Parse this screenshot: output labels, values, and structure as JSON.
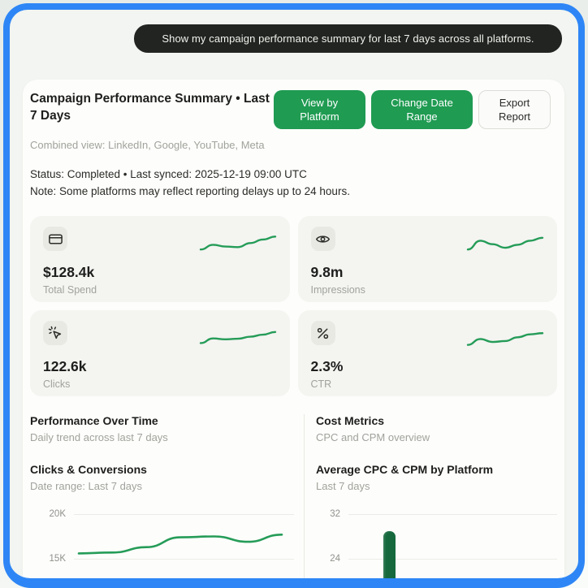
{
  "chat": {
    "message": "Show my campaign performance summary for last 7 days across all platforms."
  },
  "header": {
    "title": "Campaign Performance Summary • Last 7 Days",
    "subtitle": "Combined view: LinkedIn, Google, YouTube, Meta",
    "buttons": [
      {
        "label": "View by Platform",
        "style": "primary"
      },
      {
        "label": "Change Date Range",
        "style": "primary"
      },
      {
        "label": "Export Report",
        "style": "secondary"
      }
    ]
  },
  "status": {
    "line1": "Status: Completed • Last synced: 2025-12-19 09:00 UTC",
    "line2": "Note: Some platforms may reflect reporting delays up to 24 hours."
  },
  "kpis": [
    {
      "icon": "credit-card",
      "value": "$128.4k",
      "label": "Total Spend",
      "trend": [
        3.0,
        4.6,
        4.0,
        3.8,
        5.2,
        6.4,
        7.4
      ]
    },
    {
      "icon": "eye",
      "value": "9.8m",
      "label": "Impressions",
      "trend": [
        3.0,
        6.0,
        4.8,
        3.6,
        4.6,
        6.0,
        7.0
      ]
    },
    {
      "icon": "cursor-click",
      "value": "122.6k",
      "label": "Clicks",
      "trend": [
        3.2,
        4.8,
        4.5,
        4.7,
        5.4,
        6.1,
        7.0
      ]
    },
    {
      "icon": "percent",
      "value": "2.3%",
      "label": "CTR",
      "trend": [
        2.6,
        4.6,
        3.6,
        3.9,
        5.2,
        6.2,
        6.6
      ]
    }
  ],
  "sections": {
    "left": {
      "title": "Performance Over Time",
      "subtitle": "Daily trend across last 7 days",
      "chart_title": "Clicks & Conversions",
      "chart_subtitle": "Date range: Last 7 days"
    },
    "right": {
      "title": "Cost Metrics",
      "subtitle": "CPC and CPM overview",
      "chart_title": "Average CPC & CPM by Platform",
      "chart_subtitle": "Last 7 days"
    }
  },
  "chart_data": [
    {
      "id": "clicks-line",
      "type": "line",
      "title": "Clicks & Conversions",
      "values": [
        15600,
        15700,
        16300,
        17400,
        17500,
        16900,
        17700
      ],
      "y_ticks_visible": [
        "20K",
        "15K"
      ],
      "ylim_visible": [
        15000,
        20000
      ],
      "series_color": "#259c58",
      "note": "chart partially cut off at bottom edge of screenshot"
    },
    {
      "id": "cpc-cpm-bar",
      "type": "bar",
      "title": "Average CPC & CPM by Platform",
      "values": [
        29
      ],
      "y_ticks_visible": [
        "32",
        "24"
      ],
      "bar_color": "#15693c",
      "note": "only first bar visible; chart cut off at bottom edge"
    }
  ],
  "colors": {
    "accent_green": "#1f9b52",
    "spark_green": "#259c58",
    "bar_green": "#15693c",
    "frame_blue": "#2e86f6",
    "bubble_dark": "#212420",
    "card_bg": "#fdfdfb",
    "kpi_card_bg": "#f4f4f1"
  }
}
